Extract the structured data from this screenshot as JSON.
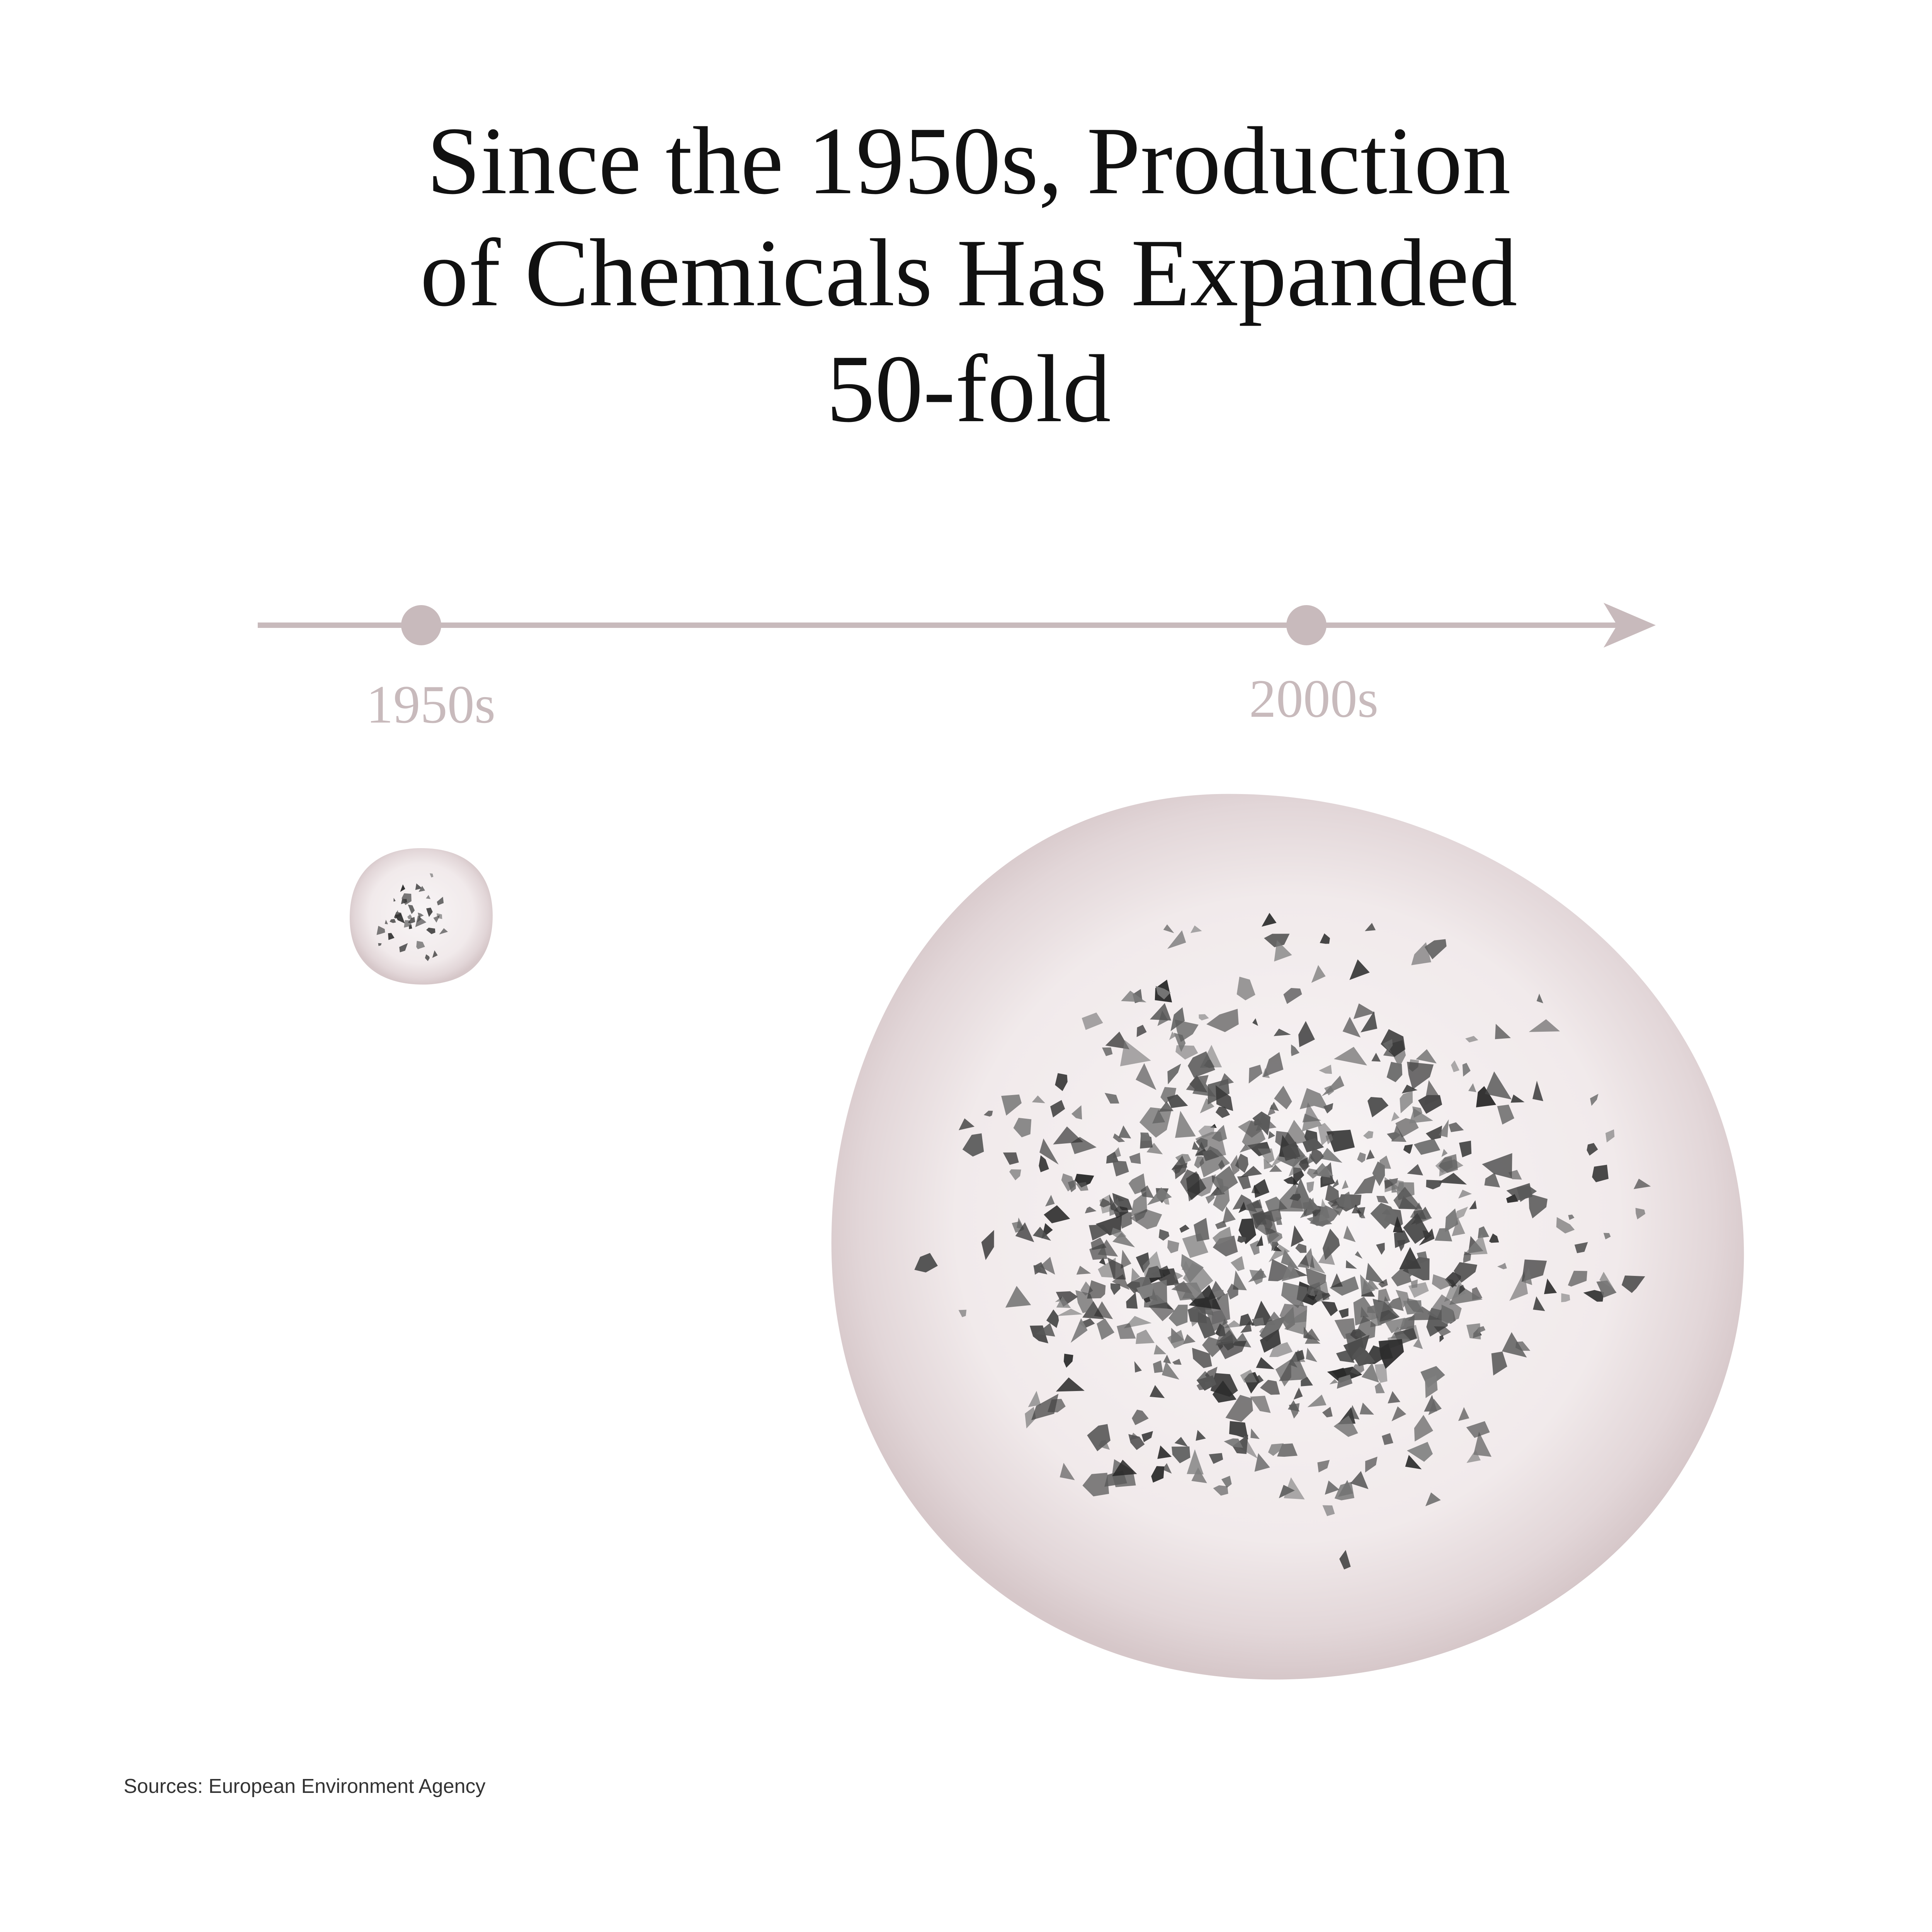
{
  "title": {
    "lines": [
      "Since the 1950s, Production",
      "of Chemicals Has Expanded",
      "50-fold"
    ]
  },
  "timeline": {
    "labels": [
      "1950s",
      "2000s"
    ]
  },
  "source": "Sources: European Environment Agency"
}
